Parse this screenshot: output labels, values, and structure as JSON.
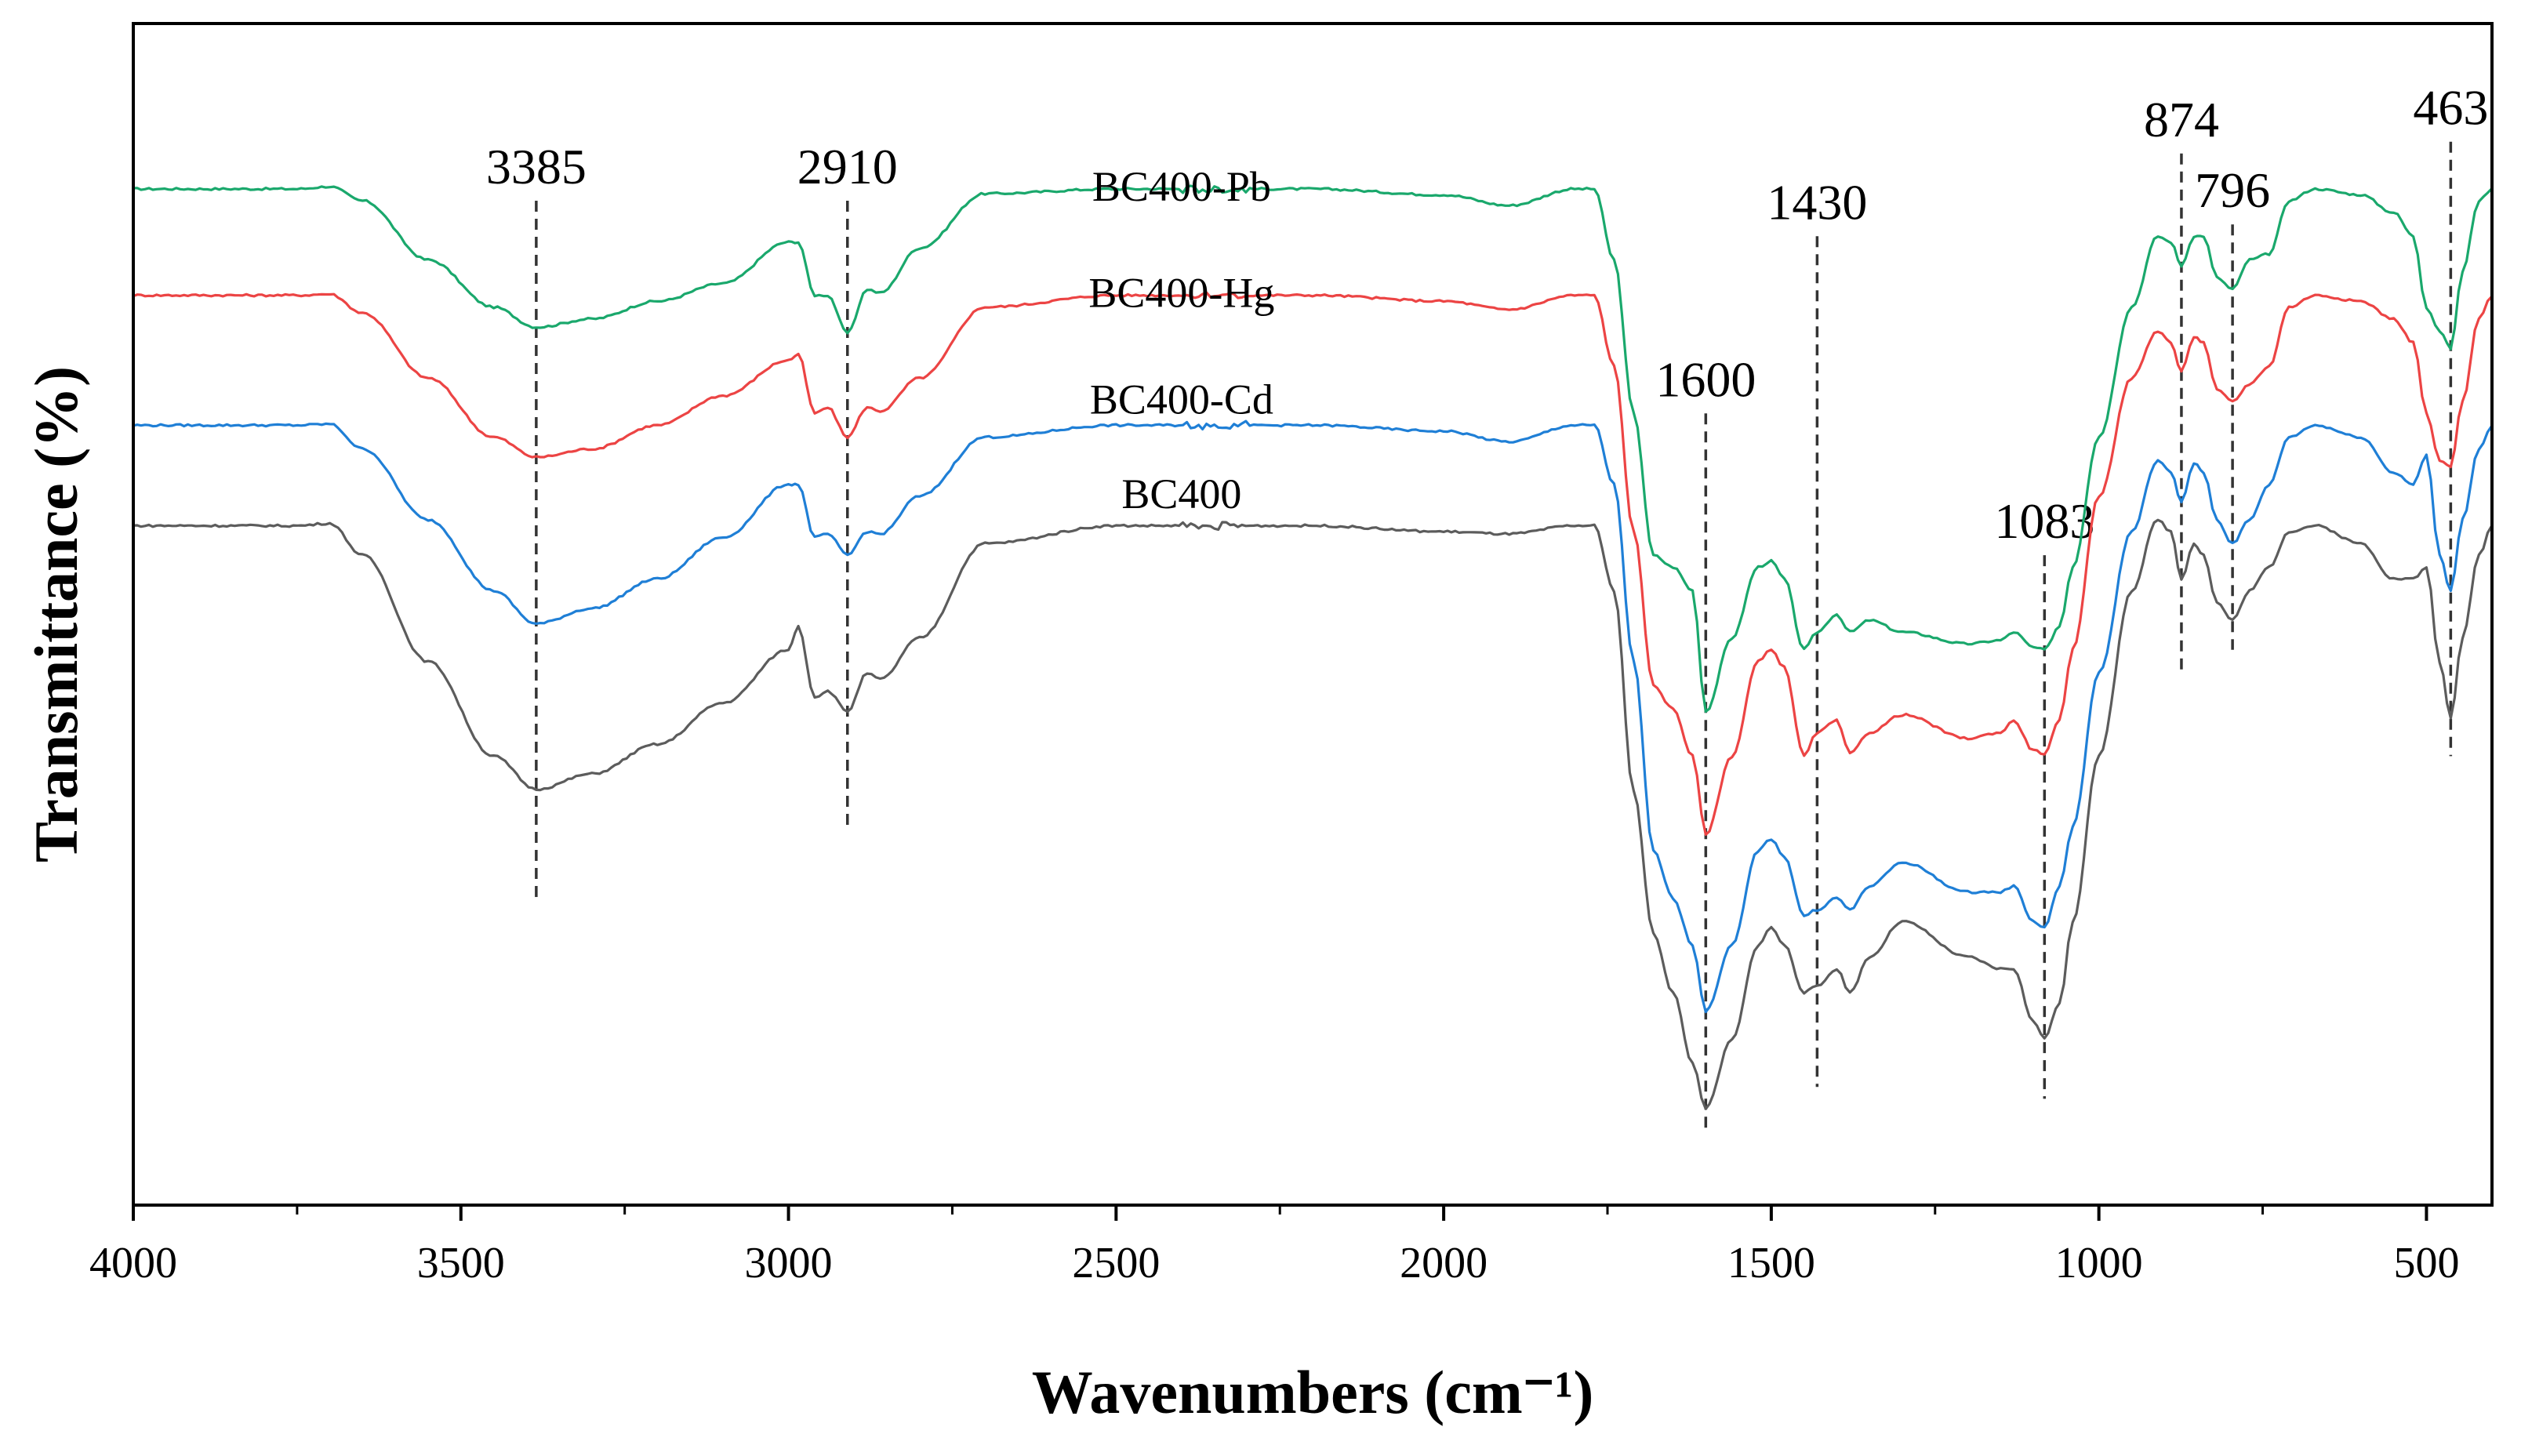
{
  "chart_data": {
    "type": "line",
    "title": "",
    "xlabel": "Wavenumbers (cm⁻¹)",
    "ylabel": "Transmittance (%)",
    "xlim": [
      4000,
      400
    ],
    "x_reversed": true,
    "ylim": [
      0,
      100
    ],
    "y_ticks_shown": false,
    "x_ticks": [
      4000,
      3500,
      3000,
      2500,
      2000,
      1500,
      1000,
      500
    ],
    "x_tick_labels": [
      "4000",
      "3500",
      "3000",
      "2500",
      "2000",
      "1500",
      "1000",
      "500"
    ],
    "peaks": [
      {
        "label": "3385",
        "x": 3385,
        "y_top": 85,
        "y_bottom": 26
      },
      {
        "label": "2910",
        "x": 2910,
        "y_top": 85,
        "y_bottom": 32
      },
      {
        "label": "1600",
        "x": 1600,
        "y_top": 67,
        "y_bottom": 6
      },
      {
        "label": "1430",
        "x": 1430,
        "y_top": 82,
        "y_bottom": 10
      },
      {
        "label": "1083",
        "x": 1083,
        "y_top": 55,
        "y_bottom": 9
      },
      {
        "label": "874",
        "x": 874,
        "y_top": 89,
        "y_bottom": 45
      },
      {
        "label": "796",
        "x": 796,
        "y_top": 83,
        "y_bottom": 47
      },
      {
        "label": "463",
        "x": 463,
        "y_top": 90,
        "y_bottom": 38
      }
    ],
    "series": [
      {
        "name": "BC400-Pb",
        "color": "#1aa86c",
        "label_x": 2400,
        "label_y": 85,
        "points": [
          [
            4000,
            86
          ],
          [
            3750,
            86
          ],
          [
            3700,
            86.2
          ],
          [
            3650,
            85
          ],
          [
            3550,
            80
          ],
          [
            3450,
            76
          ],
          [
            3385,
            74.3
          ],
          [
            3300,
            75
          ],
          [
            3200,
            76.5
          ],
          [
            3100,
            78
          ],
          [
            3000,
            81.5
          ],
          [
            2985,
            81.5
          ],
          [
            2960,
            77
          ],
          [
            2940,
            77
          ],
          [
            2910,
            73.8
          ],
          [
            2880,
            77.5
          ],
          [
            2860,
            77.2
          ],
          [
            2800,
            81
          ],
          [
            2700,
            85.6
          ],
          [
            2500,
            86
          ],
          [
            2200,
            86
          ],
          [
            2000,
            85.5
          ],
          [
            1900,
            84.6
          ],
          [
            1800,
            86
          ],
          [
            1770,
            86
          ],
          [
            1740,
            80
          ],
          [
            1710,
            67
          ],
          [
            1680,
            55
          ],
          [
            1650,
            54
          ],
          [
            1620,
            52
          ],
          [
            1600,
            41.8
          ],
          [
            1560,
            48
          ],
          [
            1520,
            54
          ],
          [
            1500,
            54.5
          ],
          [
            1480,
            53
          ],
          [
            1450,
            47
          ],
          [
            1430,
            48.5
          ],
          [
            1400,
            50
          ],
          [
            1380,
            48.5
          ],
          [
            1350,
            49.5
          ],
          [
            1300,
            48.5
          ],
          [
            1200,
            47.5
          ],
          [
            1150,
            47.8
          ],
          [
            1130,
            48.5
          ],
          [
            1100,
            47.2
          ],
          [
            1083,
            47
          ],
          [
            1060,
            49
          ],
          [
            1040,
            54
          ],
          [
            1000,
            65
          ],
          [
            950,
            76
          ],
          [
            910,
            82
          ],
          [
            890,
            81.5
          ],
          [
            874,
            79.5
          ],
          [
            855,
            82
          ],
          [
            840,
            82
          ],
          [
            820,
            78.5
          ],
          [
            796,
            77.5
          ],
          [
            770,
            80
          ],
          [
            740,
            80.5
          ],
          [
            710,
            85
          ],
          [
            670,
            86
          ],
          [
            600,
            85.5
          ],
          [
            550,
            84
          ],
          [
            520,
            82
          ],
          [
            500,
            76
          ],
          [
            480,
            74
          ],
          [
            463,
            72.5
          ],
          [
            445,
            79
          ],
          [
            420,
            85
          ],
          [
            400,
            86
          ]
        ]
      },
      {
        "name": "BC400-Hg",
        "color": "#ec4444",
        "label_x": 2400,
        "label_y": 76,
        "points": [
          [
            4000,
            77
          ],
          [
            3750,
            77
          ],
          [
            3700,
            77.1
          ],
          [
            3650,
            75.5
          ],
          [
            3550,
            70
          ],
          [
            3450,
            65
          ],
          [
            3385,
            63.3
          ],
          [
            3300,
            64
          ],
          [
            3200,
            66
          ],
          [
            3100,
            68.5
          ],
          [
            3000,
            71.5
          ],
          [
            2985,
            72
          ],
          [
            2960,
            67
          ],
          [
            2940,
            67.5
          ],
          [
            2910,
            65
          ],
          [
            2880,
            67.5
          ],
          [
            2860,
            67.2
          ],
          [
            2800,
            70
          ],
          [
            2700,
            76
          ],
          [
            2500,
            77
          ],
          [
            2200,
            77
          ],
          [
            2000,
            76.5
          ],
          [
            1900,
            75.8
          ],
          [
            1800,
            77
          ],
          [
            1770,
            77
          ],
          [
            1740,
            71
          ],
          [
            1710,
            57
          ],
          [
            1680,
            44
          ],
          [
            1650,
            42
          ],
          [
            1620,
            38
          ],
          [
            1600,
            31.4
          ],
          [
            1560,
            38
          ],
          [
            1520,
            46
          ],
          [
            1500,
            47
          ],
          [
            1480,
            45.5
          ],
          [
            1450,
            38
          ],
          [
            1430,
            40
          ],
          [
            1400,
            41
          ],
          [
            1380,
            38.2
          ],
          [
            1350,
            40
          ],
          [
            1300,
            41.5
          ],
          [
            1200,
            39.5
          ],
          [
            1150,
            40
          ],
          [
            1130,
            41
          ],
          [
            1100,
            38.5
          ],
          [
            1083,
            38.2
          ],
          [
            1060,
            41
          ],
          [
            1040,
            47
          ],
          [
            1000,
            60
          ],
          [
            950,
            70
          ],
          [
            910,
            74
          ],
          [
            890,
            73
          ],
          [
            874,
            70.5
          ],
          [
            855,
            73.5
          ],
          [
            840,
            73
          ],
          [
            820,
            69
          ],
          [
            796,
            68
          ],
          [
            770,
            69.5
          ],
          [
            740,
            71
          ],
          [
            710,
            76
          ],
          [
            670,
            77
          ],
          [
            600,
            76.5
          ],
          [
            550,
            75
          ],
          [
            520,
            73
          ],
          [
            500,
            67
          ],
          [
            480,
            63
          ],
          [
            463,
            62.5
          ],
          [
            445,
            68
          ],
          [
            420,
            75
          ],
          [
            400,
            77
          ]
        ]
      },
      {
        "name": "BC400-Cd",
        "color": "#1f7fd6",
        "label_x": 2400,
        "label_y": 67,
        "points": [
          [
            4000,
            66
          ],
          [
            3750,
            66
          ],
          [
            3700,
            66.1
          ],
          [
            3650,
            64
          ],
          [
            3550,
            58
          ],
          [
            3450,
            52
          ],
          [
            3385,
            49.2
          ],
          [
            3300,
            50.5
          ],
          [
            3200,
            53
          ],
          [
            3100,
            56.5
          ],
          [
            3000,
            61
          ],
          [
            2985,
            61
          ],
          [
            2960,
            56.5
          ],
          [
            2940,
            56.8
          ],
          [
            2910,
            55
          ],
          [
            2880,
            57
          ],
          [
            2860,
            56.8
          ],
          [
            2800,
            60
          ],
          [
            2700,
            65
          ],
          [
            2500,
            66
          ],
          [
            2200,
            66
          ],
          [
            2000,
            65.5
          ],
          [
            1900,
            64.6
          ],
          [
            1800,
            66
          ],
          [
            1770,
            66
          ],
          [
            1740,
            61
          ],
          [
            1710,
            46
          ],
          [
            1680,
            30
          ],
          [
            1650,
            26
          ],
          [
            1620,
            22
          ],
          [
            1600,
            16.4
          ],
          [
            1560,
            22
          ],
          [
            1520,
            30
          ],
          [
            1500,
            31
          ],
          [
            1480,
            29.5
          ],
          [
            1450,
            24.5
          ],
          [
            1430,
            25
          ],
          [
            1400,
            26
          ],
          [
            1380,
            25
          ],
          [
            1350,
            27
          ],
          [
            1300,
            29
          ],
          [
            1200,
            26.5
          ],
          [
            1150,
            26.5
          ],
          [
            1130,
            27
          ],
          [
            1100,
            24
          ],
          [
            1083,
            23.5
          ],
          [
            1060,
            27
          ],
          [
            1040,
            32
          ],
          [
            1000,
            45
          ],
          [
            950,
            57
          ],
          [
            910,
            63
          ],
          [
            890,
            62
          ],
          [
            874,
            59.5
          ],
          [
            855,
            62.8
          ],
          [
            840,
            62
          ],
          [
            820,
            58
          ],
          [
            796,
            56
          ],
          [
            770,
            58
          ],
          [
            740,
            61
          ],
          [
            710,
            65
          ],
          [
            670,
            66
          ],
          [
            600,
            65
          ],
          [
            550,
            62
          ],
          [
            520,
            61
          ],
          [
            500,
            63.5
          ],
          [
            480,
            55
          ],
          [
            463,
            52
          ],
          [
            445,
            58
          ],
          [
            420,
            64
          ],
          [
            400,
            66
          ]
        ]
      },
      {
        "name": "BC400",
        "color": "#5c5c5c",
        "label_x": 2400,
        "label_y": 59,
        "points": [
          [
            4000,
            57.5
          ],
          [
            3750,
            57.5
          ],
          [
            3700,
            57.7
          ],
          [
            3650,
            55
          ],
          [
            3550,
            46
          ],
          [
            3450,
            38
          ],
          [
            3385,
            35.2
          ],
          [
            3300,
            36.5
          ],
          [
            3200,
            39
          ],
          [
            3100,
            42.5
          ],
          [
            3000,
            47
          ],
          [
            2985,
            49
          ],
          [
            2960,
            43
          ],
          [
            2940,
            43.5
          ],
          [
            2910,
            41.8
          ],
          [
            2880,
            45
          ],
          [
            2860,
            44.5
          ],
          [
            2800,
            48
          ],
          [
            2700,
            56
          ],
          [
            2500,
            57.5
          ],
          [
            2200,
            57.5
          ],
          [
            2000,
            57
          ],
          [
            1900,
            56.8
          ],
          [
            1800,
            57.5
          ],
          [
            1770,
            57.5
          ],
          [
            1740,
            52
          ],
          [
            1710,
            35
          ],
          [
            1680,
            23
          ],
          [
            1650,
            18
          ],
          [
            1620,
            12
          ],
          [
            1600,
            8.2
          ],
          [
            1560,
            14
          ],
          [
            1520,
            22
          ],
          [
            1500,
            23.5
          ],
          [
            1480,
            22
          ],
          [
            1450,
            18
          ],
          [
            1430,
            18.5
          ],
          [
            1400,
            20
          ],
          [
            1380,
            18
          ],
          [
            1350,
            21
          ],
          [
            1300,
            24
          ],
          [
            1200,
            21
          ],
          [
            1150,
            20
          ],
          [
            1130,
            20
          ],
          [
            1100,
            15.5
          ],
          [
            1083,
            14.2
          ],
          [
            1060,
            17
          ],
          [
            1040,
            24
          ],
          [
            1000,
            38
          ],
          [
            950,
            52
          ],
          [
            910,
            58
          ],
          [
            890,
            57
          ],
          [
            874,
            53
          ],
          [
            855,
            56
          ],
          [
            840,
            55
          ],
          [
            820,
            51
          ],
          [
            796,
            49.5
          ],
          [
            770,
            52
          ],
          [
            740,
            54
          ],
          [
            710,
            57
          ],
          [
            670,
            57.5
          ],
          [
            600,
            56
          ],
          [
            550,
            53
          ],
          [
            520,
            53
          ],
          [
            500,
            54
          ],
          [
            480,
            46
          ],
          [
            463,
            41.2
          ],
          [
            445,
            48
          ],
          [
            420,
            55
          ],
          [
            400,
            57.5
          ]
        ]
      }
    ]
  }
}
